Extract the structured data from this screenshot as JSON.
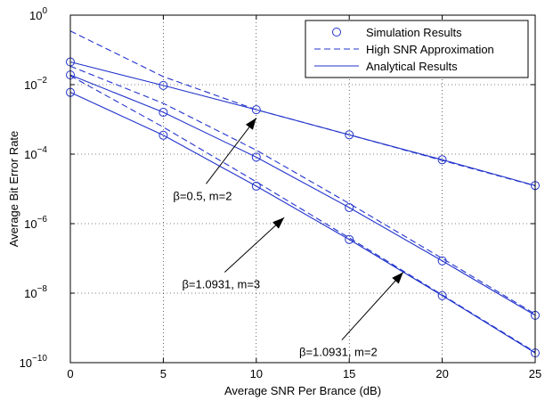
{
  "chart_data": {
    "type": "line",
    "title": "",
    "xlabel": "Average SNR Per Brance (dB)",
    "ylabel": "Average Bit Error Rate",
    "xlim": [
      0,
      25
    ],
    "ylim": [
      1e-10,
      1
    ],
    "yscale": "log",
    "grid": true,
    "legend_position": "top-right",
    "x_ticks": [
      0,
      5,
      10,
      15,
      20,
      25
    ],
    "x_tick_labels": [
      "0",
      "5",
      "10",
      "15",
      "20",
      "25"
    ],
    "y_ticks": [
      1e-10,
      1e-08,
      1e-06,
      0.0001,
      0.01,
      1
    ],
    "y_tick_labels": [
      {
        "base": "10",
        "exp": "−10"
      },
      {
        "base": "10",
        "exp": "−8"
      },
      {
        "base": "10",
        "exp": "−6"
      },
      {
        "base": "10",
        "exp": "−4"
      },
      {
        "base": "10",
        "exp": "−2"
      },
      {
        "base": "10",
        "exp": "0"
      }
    ],
    "legend": [
      {
        "label": "Simulation Results",
        "style": "circle"
      },
      {
        "label": "High SNR Approximation",
        "style": "dashed"
      },
      {
        "label": "Analytical Results",
        "style": "solid"
      }
    ],
    "x": [
      0,
      5,
      10,
      15,
      20,
      25
    ],
    "series": [
      {
        "group": "β=0.5, m=2",
        "simulation": [
          0.045,
          0.0095,
          0.0019,
          0.00036,
          6.9e-05,
          1.25e-05
        ],
        "analytical": [
          0.045,
          0.0095,
          0.0019,
          0.00036,
          6.9e-05,
          1.25e-05
        ],
        "approximation": [
          0.35,
          0.017,
          0.0019,
          0.00036,
          6.6e-05,
          1.22e-05
        ]
      },
      {
        "group": "β=1.0931, m=3",
        "simulation": [
          0.019,
          0.0016,
          8.2e-05,
          2.9e-06,
          8.5e-08,
          2.3e-09
        ],
        "analytical": [
          0.019,
          0.0016,
          8.2e-05,
          2.9e-06,
          8.5e-08,
          2.3e-09
        ],
        "approximation": [
          0.034,
          0.0029,
          0.00013,
          3.8e-06,
          1e-07,
          2.5e-09
        ]
      },
      {
        "group": "β=1.0931, m=2",
        "simulation": [
          0.006,
          0.00035,
          1.2e-05,
          3.5e-07,
          8.5e-09,
          1.9e-10
        ],
        "analytical": [
          0.006,
          0.00035,
          1.2e-05,
          3.5e-07,
          8.5e-09,
          1.9e-10
        ],
        "approximation": [
          0.018,
          0.0006,
          1.6e-05,
          3.9e-07,
          8.9e-09,
          2e-10
        ]
      }
    ],
    "annotations": [
      {
        "text": "β=0.5, m=2",
        "tail": [
          7.3,
          1.4e-05
        ],
        "head": [
          10.0,
          0.0011
        ]
      },
      {
        "text": "β=1.0931, m=3",
        "tail": [
          8.3,
          4e-08
        ],
        "head": [
          11.5,
          1.5e-06
        ]
      },
      {
        "text": "β=1.0931, m=2",
        "tail": [
          14.6,
          4.5e-10
        ],
        "head": [
          17.9,
          4e-08
        ]
      }
    ],
    "colors": {
      "series": "#2233cc",
      "grid": "#000000",
      "axes": "#000000"
    }
  }
}
